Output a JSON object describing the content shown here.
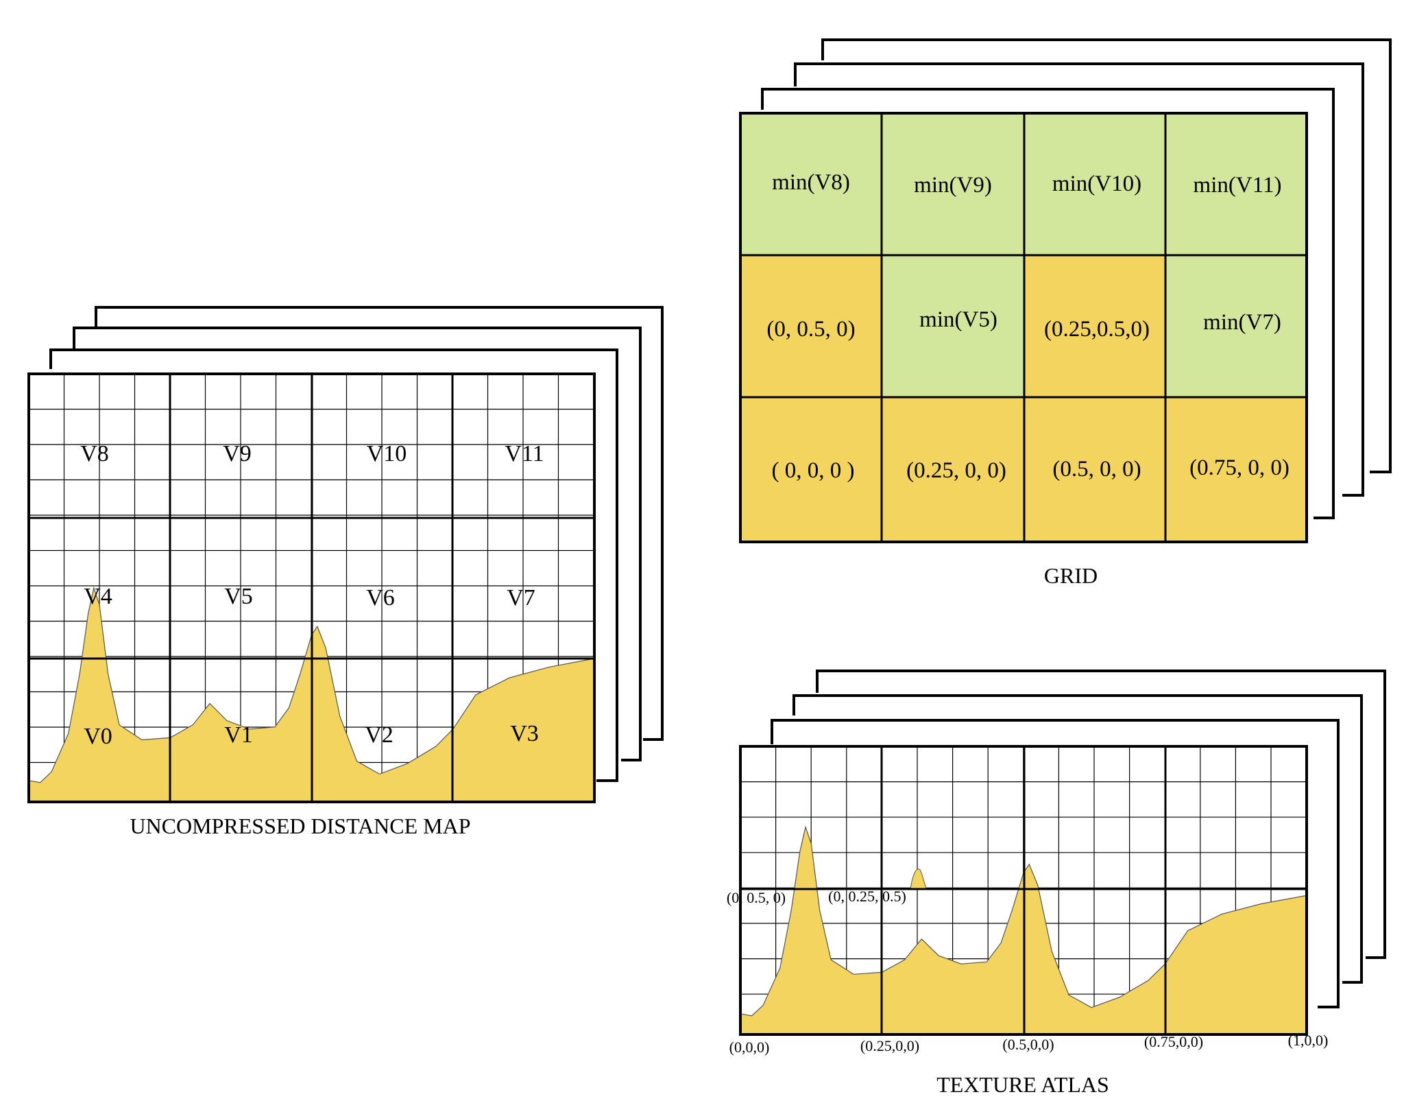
{
  "distance_map": {
    "caption": "UNCOMPRESSED DISTANCE MAP",
    "cells": [
      "V8",
      "V9",
      "V10",
      "V11",
      "V4",
      "V5",
      "V6",
      "V7",
      "V0",
      "V1",
      "V2",
      "V3"
    ]
  },
  "grid": {
    "caption": "GRID",
    "cells": [
      "min(V8)",
      "min(V9)",
      "min(V10)",
      "min(V11)",
      "(0, 0.5, 0)",
      "min(V5)",
      "(0.25,0.5,0)",
      "min(V7)",
      "( 0, 0, 0 )",
      "(0.25, 0, 0)",
      "(0.5, 0, 0)",
      "(0.75, 0, 0)"
    ]
  },
  "texture_atlas": {
    "caption": "TEXTURE ATLAS",
    "mid_labels": [
      "(0, 0.5, 0)",
      "(0, 0.25, 0.5)"
    ],
    "bottom_labels": [
      "(0,0,0)",
      "(0.25,0,0)",
      "(0.5,0,0)",
      "(0.75,0,0)",
      "(1,0,0)"
    ]
  },
  "colors": {
    "fill_yellow": "#f2d45e",
    "fill_green": "#d2e69c",
    "stroke": "#000000"
  }
}
